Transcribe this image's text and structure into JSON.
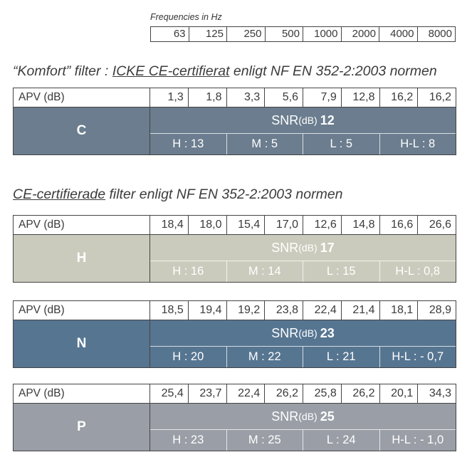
{
  "frequencies_title": "Frequencies in Hz",
  "frequencies": [
    "63",
    "125",
    "250",
    "500",
    "1000",
    "2000",
    "4000",
    "8000"
  ],
  "section1_heading": {
    "prefix": "“Komfort” filter : ",
    "underlined": "ICKE CE-certifierat",
    "suffix": " enligt NF EN 352-2:2003 normen"
  },
  "section2_heading": {
    "underlined": "CE-certifierade",
    "suffix": " filter enligt NF EN 352-2:2003 normen"
  },
  "filters": [
    {
      "label": "C",
      "color": "#6b7d8e",
      "apv_label": "APV (dB)",
      "apv": [
        "1,3",
        "1,8",
        "3,3",
        "5,6",
        "7,9",
        "12,8",
        "16,2",
        "16,2"
      ],
      "snr_label": "SNR",
      "snr_unit": "(dB)",
      "snr_value": "12",
      "h": "H : 13",
      "m": "M : 5",
      "l": "L : 5",
      "hl": "H-L : 8"
    },
    {
      "label": "H",
      "color": "#cbcbbd",
      "apv_label": "APV (dB)",
      "apv": [
        "18,4",
        "18,0",
        "15,4",
        "17,0",
        "12,6",
        "14,8",
        "16,6",
        "26,6"
      ],
      "snr_label": "SNR",
      "snr_unit": "(dB)",
      "snr_value": "17",
      "h": "H : 16",
      "m": "M : 14",
      "l": "L : 15",
      "hl": "H-L : 0,8"
    },
    {
      "label": "N",
      "color": "#567591",
      "apv_label": "APV (dB)",
      "apv": [
        "18,5",
        "19,4",
        "19,2",
        "23,8",
        "22,4",
        "21,4",
        "18,1",
        "28,9"
      ],
      "snr_label": "SNR",
      "snr_unit": "(dB)",
      "snr_value": "23",
      "h": "H : 20",
      "m": "M : 22",
      "l": "L : 21",
      "hl": "H-L : - 0,7"
    },
    {
      "label": "P",
      "color": "#9a9ea6",
      "apv_label": "APV (dB)",
      "apv": [
        "25,4",
        "23,7",
        "22,4",
        "26,2",
        "25,8",
        "26,2",
        "20,1",
        "34,3"
      ],
      "snr_label": "SNR",
      "snr_unit": "(dB)",
      "snr_value": "25",
      "h": "H : 23",
      "m": "M : 25",
      "l": "L : 24",
      "hl": "H-L : - 1,0"
    }
  ]
}
